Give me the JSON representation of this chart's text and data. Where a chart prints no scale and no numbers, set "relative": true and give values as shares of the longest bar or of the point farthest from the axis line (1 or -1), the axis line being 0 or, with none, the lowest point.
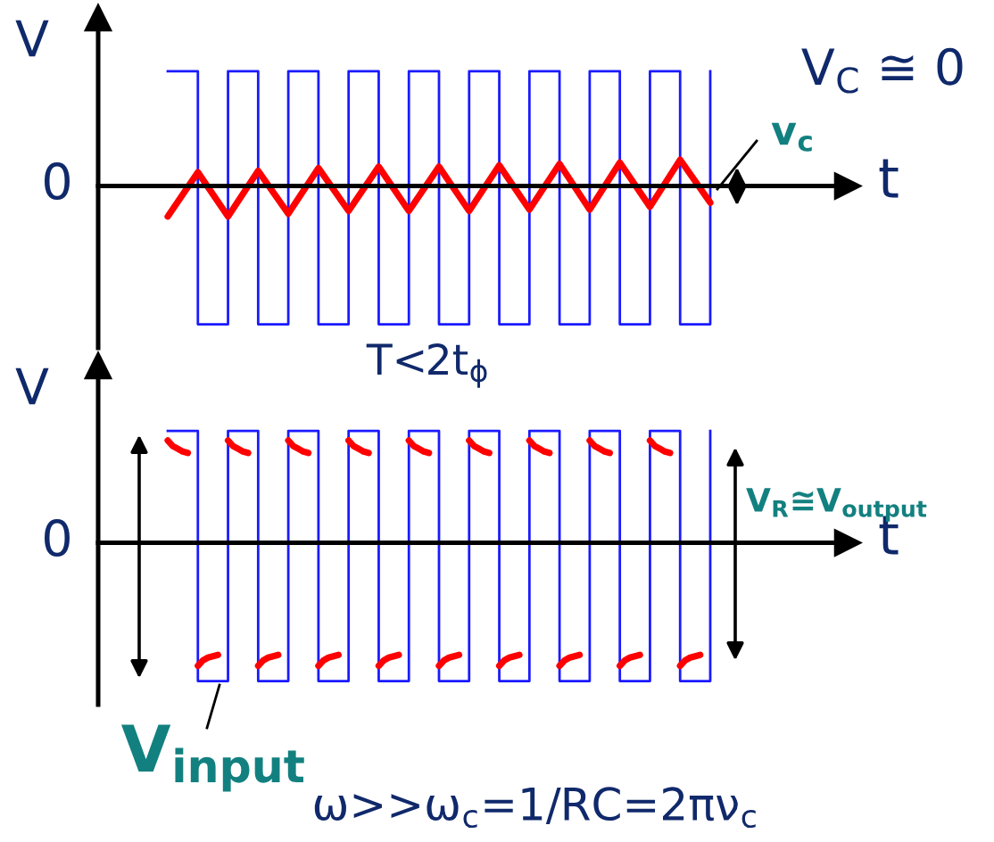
{
  "chart_data": [
    {
      "type": "line",
      "relative": true,
      "ylabel": "V",
      "xlabel": "t",
      "annotations": [
        "0",
        "V$_{C}$ ≅ 0",
        "T<2t$_{ϕ}$"
      ],
      "categories": [
        null,
        null,
        null,
        null,
        null,
        null,
        null,
        null,
        null,
        null,
        null,
        null,
        null,
        null,
        null,
        null,
        null,
        null,
        null
      ],
      "series": [
        {
          "type": "step",
          "color": "#1a1aff",
          "values": [
            0.83,
            -1,
            0.83,
            -1,
            0.83,
            -1,
            0.83,
            -1,
            0.83,
            -1,
            0.83,
            -1,
            0.83,
            -1,
            0.83,
            -1,
            0.83,
            -1,
            0.83
          ]
        },
        {
          "type": "line",
          "name": "v$_{c}$",
          "color": "#ff0000",
          "values": [
            -0.22,
            0.1,
            -0.22,
            0.11,
            -0.2,
            0.13,
            -0.18,
            0.14,
            -0.18,
            0.14,
            -0.18,
            0.15,
            -0.17,
            0.16,
            -0.17,
            0.17,
            -0.15,
            0.19,
            -0.12
          ]
        }
      ]
    },
    {
      "type": "line",
      "relative": true,
      "ylabel": "V",
      "xlabel": "t",
      "annotations": [
        "0",
        "ω>>ω$_{c}$=1/RC=2πν$_{c}$",
        "V$_{R}$≅V$_{output}$"
      ],
      "categories": [
        null,
        null,
        null,
        null,
        null,
        null,
        null,
        null,
        null,
        null,
        null,
        null,
        null,
        null,
        null,
        null,
        null,
        null,
        null,
        null,
        null,
        null,
        null,
        null,
        null,
        null,
        null,
        null,
        null,
        null,
        null,
        null,
        null,
        null,
        null,
        null,
        null,
        null,
        null,
        null,
        null,
        null,
        null,
        null,
        null,
        null,
        null,
        null,
        null,
        null,
        null,
        null,
        null,
        null,
        null,
        null,
        null,
        null,
        null,
        null,
        null,
        null,
        null,
        null,
        null,
        null,
        null,
        null,
        null,
        null,
        null,
        null,
        null,
        null,
        null,
        null,
        null,
        null,
        null,
        null,
        null,
        null,
        null,
        null,
        null,
        null,
        null,
        null,
        null,
        null,
        null,
        null,
        null,
        null,
        null,
        null,
        null,
        null,
        null,
        null,
        null,
        null,
        null,
        null,
        null,
        null,
        null,
        null,
        null
      ],
      "series": [
        {
          "type": "step",
          "name": "V$_{input}$",
          "color": "#1a1aff",
          "values": [
            0.81,
            0.81,
            0.81,
            0.81,
            0.81,
            0.81,
            -1,
            -1,
            -1,
            -1,
            -1,
            -1,
            0.81,
            0.81,
            0.81,
            0.81,
            0.81,
            0.81,
            -1,
            -1,
            -1,
            -1,
            -1,
            -1,
            0.81,
            0.81,
            0.81,
            0.81,
            0.81,
            0.81,
            -1,
            -1,
            -1,
            -1,
            -1,
            -1,
            0.81,
            0.81,
            0.81,
            0.81,
            0.81,
            0.81,
            -1,
            -1,
            -1,
            -1,
            -1,
            -1,
            0.81,
            0.81,
            0.81,
            0.81,
            0.81,
            0.81,
            -1,
            -1,
            -1,
            -1,
            -1,
            -1,
            0.81,
            0.81,
            0.81,
            0.81,
            0.81,
            0.81,
            -1,
            -1,
            -1,
            -1,
            -1,
            -1,
            0.81,
            0.81,
            0.81,
            0.81,
            0.81,
            0.81,
            -1,
            -1,
            -1,
            -1,
            -1,
            -1,
            0.81,
            0.81,
            0.81,
            0.81,
            0.81,
            0.81,
            -1,
            -1,
            -1,
            -1,
            -1,
            -1,
            0.81,
            0.81,
            0.81,
            0.81,
            0.81,
            0.81,
            -1,
            -1,
            -1,
            -1,
            -1,
            -1,
            0.81
          ]
        },
        {
          "type": "line",
          "color": "#ff0000",
          "values": [
            0.74,
            0.7,
            0.68,
            0.66,
            0.65,
            null,
            -0.89,
            -0.85,
            -0.83,
            -0.82,
            -0.81,
            null,
            0.74,
            0.7,
            0.68,
            0.66,
            0.65,
            null,
            -0.89,
            -0.85,
            -0.83,
            -0.82,
            -0.81,
            null,
            0.74,
            0.7,
            0.68,
            0.66,
            0.65,
            null,
            -0.89,
            -0.85,
            -0.83,
            -0.82,
            -0.81,
            null,
            0.74,
            0.7,
            0.68,
            0.66,
            0.65,
            null,
            -0.89,
            -0.85,
            -0.83,
            -0.82,
            -0.81,
            null,
            0.74,
            0.7,
            0.68,
            0.66,
            0.65,
            null,
            -0.89,
            -0.85,
            -0.83,
            -0.82,
            -0.81,
            null,
            0.74,
            0.7,
            0.68,
            0.66,
            0.65,
            null,
            -0.89,
            -0.85,
            -0.83,
            -0.82,
            -0.81,
            null,
            0.74,
            0.7,
            0.68,
            0.66,
            0.65,
            null,
            -0.89,
            -0.85,
            -0.83,
            -0.82,
            -0.81,
            null,
            0.74,
            0.7,
            0.68,
            0.66,
            0.65,
            null,
            -0.89,
            -0.85,
            -0.83,
            -0.82,
            -0.81,
            null,
            0.74,
            0.7,
            0.68,
            0.66,
            0.65,
            null,
            -0.89,
            -0.85,
            -0.83,
            -0.82,
            -0.81,
            null,
            null
          ]
        }
      ]
    }
  ]
}
